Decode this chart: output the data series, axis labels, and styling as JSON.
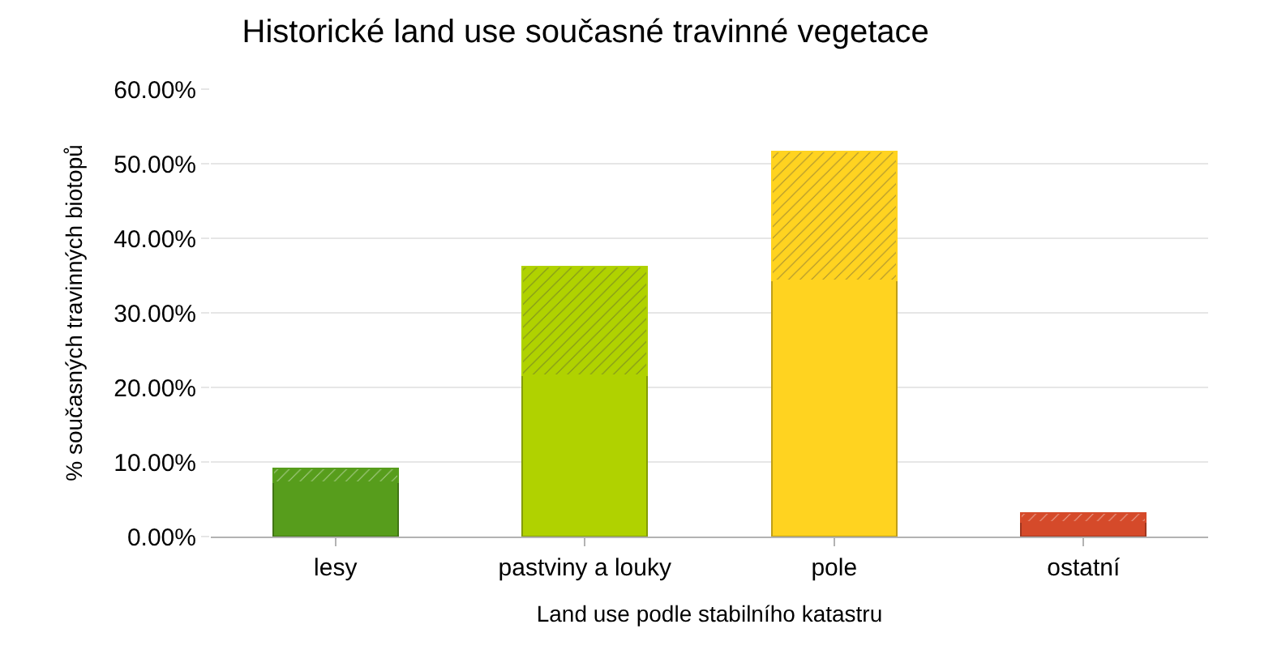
{
  "chart_data": {
    "type": "bar",
    "title": "Historické land use současné travinné vegetace",
    "xlabel": "Land use podle stabilního katastru",
    "ylabel": "% současných travinných biotopů",
    "categories": [
      "lesy",
      "pastviny a louky",
      "pole",
      "ostatní"
    ],
    "stacked": true,
    "series": [
      {
        "colors": [
          "#579d1c",
          "#b0d200",
          "#ffd320",
          "#d54a2a"
        ],
        "values": [
          7.3,
          21.6,
          34.3,
          2.0
        ]
      },
      {
        "colors": [
          "#579d1c",
          "#b0d200",
          "#ffd320",
          "#d54a2a"
        ],
        "values": [
          1.8,
          14.6,
          17.3,
          1.1
        ]
      }
    ],
    "ylim": [
      0,
      60
    ],
    "yticks": [
      {
        "value": 0,
        "label": "0.00%"
      },
      {
        "value": 10,
        "label": "10.00%"
      },
      {
        "value": 20,
        "label": "20.00%"
      },
      {
        "value": 30,
        "label": "30.00%"
      },
      {
        "value": 40,
        "label": "40.00%"
      },
      {
        "value": 50,
        "label": "50.00%"
      },
      {
        "value": 60,
        "label": "60.00%"
      }
    ],
    "grid": "y"
  }
}
